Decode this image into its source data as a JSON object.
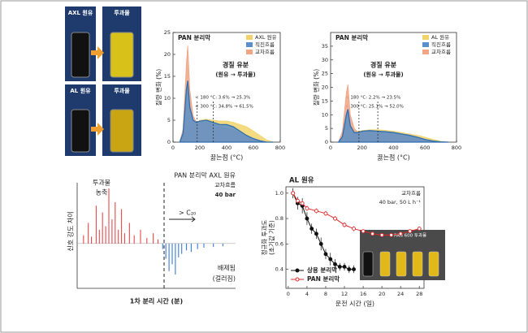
{
  "photos": {
    "labels": [
      "AXL 원유",
      "투과물",
      "AL 원유",
      "투과물"
    ]
  },
  "chart_data": [
    {
      "type": "area",
      "title": "PAN 분리막",
      "xlabel": "끓는점 (°C)",
      "ylabel": "질량 변화 (%)",
      "x": [
        50,
        75,
        100,
        110,
        125,
        150,
        175,
        200,
        250,
        300,
        350,
        400,
        450,
        500,
        550,
        600,
        650,
        700,
        750
      ],
      "series": [
        {
          "name": "AXL 원유",
          "color": "#f2d36b",
          "values": [
            0,
            0.5,
            2,
            3,
            3.5,
            4,
            4.5,
            5,
            5.2,
            5,
            4.8,
            4.8,
            4.5,
            4,
            3.5,
            2.5,
            1.5,
            0.5,
            0
          ]
        },
        {
          "name": "직진흐름",
          "color": "#5b8fc9",
          "values": [
            0,
            2,
            12,
            14,
            8,
            5,
            4.5,
            4.8,
            5,
            4.5,
            4,
            4,
            3.5,
            2.5,
            1.5,
            0.8,
            0.3,
            0,
            0
          ]
        },
        {
          "name": "교차흐름",
          "color": "#f0a584",
          "values": [
            0,
            3,
            18,
            22,
            12,
            6,
            4.5,
            4.5,
            4.5,
            4,
            3.5,
            3.2,
            2.8,
            2,
            1.2,
            0.6,
            0.2,
            0,
            0
          ]
        }
      ],
      "vlines": [
        180,
        300
      ],
      "annotations": [
        "경질 유분",
        "(원유 → 투과물)",
        "< 180 °C: 3.6% → 25.3%",
        "< 300 °C: 34.8% → 61.5%"
      ],
      "xlim": [
        0,
        800
      ],
      "xticks": [
        0,
        200,
        400,
        600,
        800
      ],
      "ylim": [
        0,
        25
      ],
      "yticks": [
        0,
        5,
        10,
        15,
        20,
        25
      ]
    },
    {
      "type": "area",
      "title": "PAN 분리막",
      "xlabel": "끓는점 (°C)",
      "ylabel": "질량 변화 (%)",
      "x": [
        50,
        75,
        100,
        110,
        125,
        150,
        175,
        200,
        250,
        300,
        350,
        400,
        450,
        500,
        550,
        600,
        650,
        700,
        750
      ],
      "series": [
        {
          "name": "AL 원유",
          "color": "#f2d36b",
          "values": [
            0,
            0.5,
            2,
            2.5,
            3,
            3.5,
            4,
            4.2,
            4.5,
            4.5,
            4.3,
            4,
            3.5,
            3,
            2.5,
            1.8,
            1,
            0.3,
            0
          ]
        },
        {
          "name": "직진흐름",
          "color": "#5b8fc9",
          "values": [
            0,
            2,
            10,
            12,
            6,
            3.5,
            3.5,
            4,
            4.2,
            4,
            3.8,
            3.5,
            3,
            2.5,
            1.8,
            1,
            0.4,
            0.1,
            0
          ]
        },
        {
          "name": "교차흐름",
          "color": "#f0a584",
          "values": [
            0,
            4,
            18,
            21,
            10,
            5,
            3.5,
            3.8,
            4,
            3.8,
            3.5,
            3.2,
            2.8,
            2.2,
            1.5,
            0.8,
            0.3,
            0,
            0
          ]
        }
      ],
      "vlines": [
        180,
        300
      ],
      "annotations": [
        "경질 유분",
        "(원유 → 투과물)",
        "< 180 °C: 2.2% → 23.5%",
        "< 300 °C: 25.1% → 52.0%"
      ],
      "xlim": [
        0,
        800
      ],
      "xticks": [
        0,
        200,
        400,
        600,
        800
      ],
      "ylim": [
        0,
        40
      ],
      "yticks": [
        0,
        5,
        10,
        15,
        20,
        25,
        30,
        35
      ]
    },
    {
      "type": "stem",
      "title": "PAN 분리막 AXL 원유",
      "xlabel": "1차 분리 시간 (분)",
      "ylabel": "신호 강도 차이",
      "annotations": [
        "교차흐름",
        "40 bar",
        "투과물",
        "농축",
        "> C₂₀",
        "배제됨",
        "(걸러짐)"
      ],
      "color_positive": "#e8474b",
      "color_negative": "#3a7bd5",
      "x": [
        4,
        7,
        9,
        12,
        14,
        16,
        18,
        20,
        22,
        24,
        26,
        28,
        30,
        33,
        36,
        40,
        44,
        48,
        51,
        54,
        56,
        58,
        60,
        62,
        64,
        66,
        69,
        72,
        76,
        80,
        86,
        92
      ],
      "values": [
        12,
        30,
        10,
        55,
        20,
        45,
        25,
        80,
        35,
        60,
        20,
        50,
        15,
        30,
        12,
        20,
        8,
        15,
        6,
        -8,
        -22,
        -40,
        -30,
        -45,
        -20,
        -15,
        -10,
        -12,
        -8,
        -6,
        -5,
        -4
      ],
      "xlim": [
        0,
        100
      ],
      "ylim": [
        -65,
        100
      ]
    },
    {
      "type": "line",
      "title": "AL 원유",
      "xlabel": "운전 시간 (일)",
      "ylabel": [
        "정규화 투과도",
        "(초기값 기준)"
      ],
      "annotations": [
        "교차흐름",
        "40 bar, 50 L h⁻¹",
        "PAN 600 투과물"
      ],
      "series": [
        {
          "name": "상용 분리막",
          "color": "#111111",
          "x": [
            1,
            2,
            3,
            4,
            5,
            6,
            7,
            8,
            9,
            10,
            11,
            12,
            13,
            14
          ],
          "values": [
            1.0,
            0.92,
            0.9,
            0.8,
            0.72,
            0.68,
            0.6,
            0.52,
            0.48,
            0.44,
            0.42,
            0.42,
            0.4,
            0.4
          ],
          "errors": [
            0.04,
            0.05,
            0.06,
            0.05,
            0.04,
            0.04,
            0.05,
            0.04,
            0.05,
            0.04,
            0.03,
            0.03,
            0.03,
            0.03
          ]
        },
        {
          "name": "PAN 분리막",
          "color": "#e0262a",
          "x": [
            1,
            2,
            3,
            4,
            6,
            8,
            10,
            12,
            14,
            16,
            18,
            20,
            22,
            24,
            26,
            28
          ],
          "values": [
            1.0,
            0.94,
            0.92,
            0.88,
            0.86,
            0.84,
            0.8,
            0.75,
            0.72,
            0.7,
            0.68,
            0.67,
            0.67,
            0.68,
            0.7,
            0.72
          ],
          "errors": [
            0.02,
            0.02,
            0.02,
            0.02,
            0.02,
            0.02,
            0.02,
            0.02,
            0.02,
            0.01,
            0.01,
            0.01,
            0.01,
            0.01,
            0.01,
            0.01
          ]
        }
      ],
      "xlim": [
        -0.5,
        29
      ],
      "xticks": [
        0,
        4,
        8,
        12,
        16,
        20,
        24,
        28
      ],
      "ylim": [
        0.25,
        1.05
      ],
      "yticks": [
        0.4,
        0.6,
        0.8,
        {
          "value": 1.0,
          "label": "1.0"
        }
      ]
    }
  ]
}
